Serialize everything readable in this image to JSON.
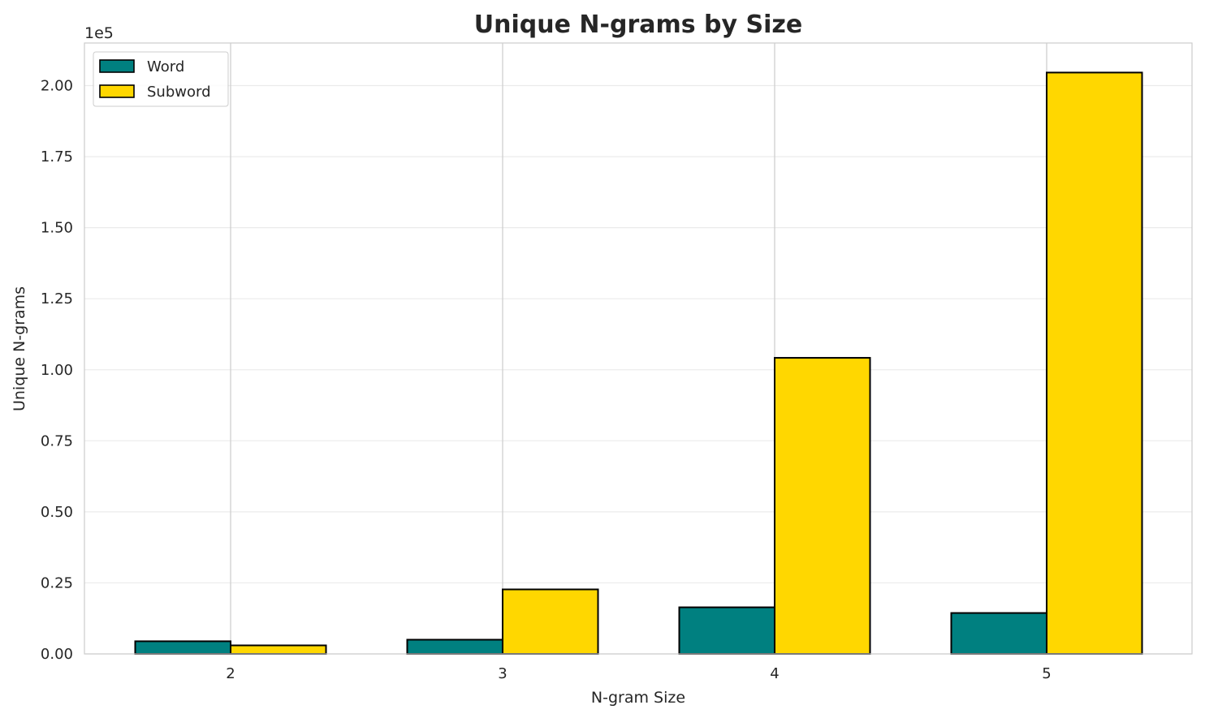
{
  "chart_data": {
    "type": "bar",
    "title": "Unique N-grams by Size",
    "xlabel": "N-gram Size",
    "ylabel": "Unique N-grams",
    "y_offset_label": "1e5",
    "categories": [
      "2",
      "3",
      "4",
      "5"
    ],
    "series": [
      {
        "name": "Word",
        "color": "#008080",
        "values": [
          4450,
          5000,
          16400,
          14400
        ]
      },
      {
        "name": "Subword",
        "color": "#FFD700",
        "values": [
          3000,
          22700,
          104200,
          204600
        ]
      }
    ],
    "ylim": [
      0,
      215000
    ],
    "yticks": [
      0,
      25000,
      50000,
      75000,
      100000,
      125000,
      150000,
      175000,
      200000
    ],
    "ytick_labels": [
      "0.00",
      "0.25",
      "0.50",
      "0.75",
      "1.00",
      "1.25",
      "1.50",
      "1.75",
      "2.00"
    ],
    "grid": true,
    "legend_position": "top-left",
    "bar_edge_color": "#000000"
  }
}
